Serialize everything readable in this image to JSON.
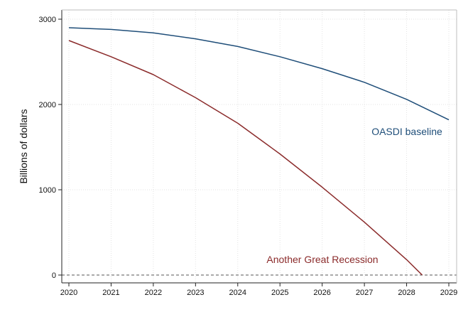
{
  "chart_data": {
    "type": "line",
    "title": "",
    "xlabel": "",
    "ylabel": "Billions of dollars",
    "xlim": [
      2020,
      2029
    ],
    "ylim": [
      0,
      3000
    ],
    "x_ticks": [
      2020,
      2021,
      2022,
      2023,
      2024,
      2025,
      2026,
      2027,
      2028,
      2029
    ],
    "y_ticks": [
      0,
      1000,
      2000,
      3000
    ],
    "grid": true,
    "reference_line": {
      "y": 0,
      "style": "dashed"
    },
    "series": [
      {
        "name": "OASDI baseline",
        "color": "#1f4e79",
        "x": [
          2020,
          2021,
          2022,
          2023,
          2024,
          2025,
          2026,
          2027,
          2028,
          2029
        ],
        "y": [
          2900,
          2880,
          2840,
          2770,
          2680,
          2560,
          2420,
          2260,
          2060,
          1820
        ]
      },
      {
        "name": "Another Great Recession",
        "color": "#8b2b2b",
        "x": [
          2020,
          2021,
          2022,
          2023,
          2024,
          2025,
          2026,
          2027,
          2028,
          2028.37
        ],
        "y": [
          2750,
          2560,
          2350,
          2080,
          1780,
          1420,
          1030,
          620,
          180,
          0
        ]
      }
    ]
  }
}
